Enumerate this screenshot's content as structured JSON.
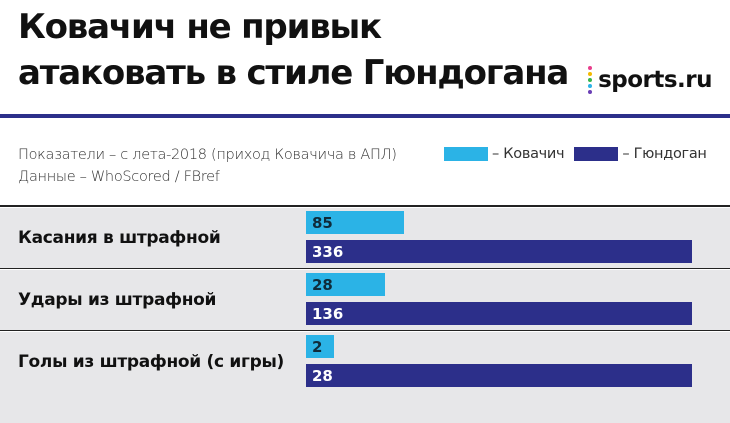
{
  "header": {
    "title": "Ковачич не привык атаковать в стиле Гюндогана",
    "logo_text": "sports.ru"
  },
  "meta": {
    "line1": "Показатели – с лета-2018 (приход Ковачича в АПЛ)",
    "line2": "Данные – WhoScored / FBref"
  },
  "colors": {
    "kovacic": "#2bb3e6",
    "gundogan": "#2c2f8a",
    "row_bg": "#e7e7e9",
    "rule": "#2c2f8a",
    "logo_dots": [
      "#e83e8c",
      "#f3b900",
      "#39b54a",
      "#2bb3e6",
      "#6a3fb5"
    ]
  },
  "chart_data": {
    "type": "bar",
    "orientation": "horizontal",
    "categories": [
      "Касания в штрафной",
      "Удары из штрафной",
      "Голы из штрафной (с игры)"
    ],
    "series": [
      {
        "name": "Ковачич",
        "legend_label": "– Ковачич",
        "values": [
          85,
          28,
          2
        ]
      },
      {
        "name": "Гюндоган",
        "legend_label": "– Гюндоган",
        "values": [
          336,
          136,
          28
        ]
      }
    ],
    "normalization": "per-category maximum",
    "legend_position": "top-right"
  }
}
